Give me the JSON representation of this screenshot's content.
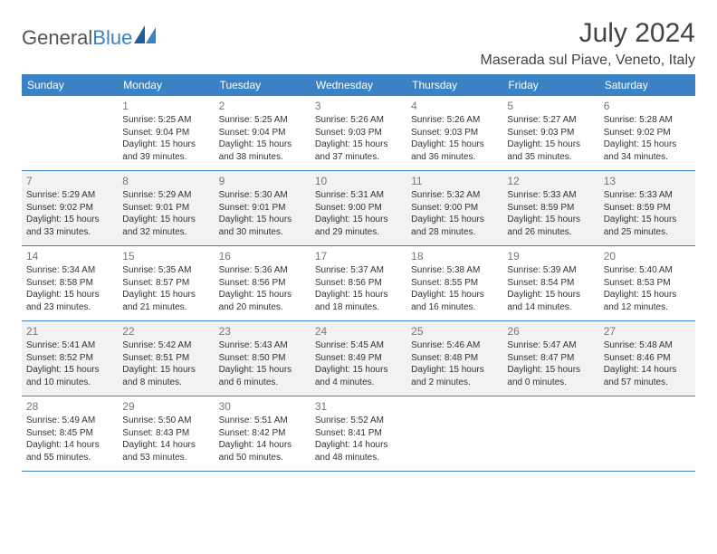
{
  "brand": {
    "name1": "General",
    "name2": "Blue"
  },
  "title": "July 2024",
  "location": "Maserada sul Piave, Veneto, Italy",
  "colors": {
    "header_bg": "#3b82c4",
    "header_text": "#ffffff",
    "day_num": "#777777",
    "body_text": "#333333",
    "shaded_bg": "#f2f2f2",
    "border": "#3b82c4",
    "title_color": "#444444"
  },
  "weekdays": [
    "Sunday",
    "Monday",
    "Tuesday",
    "Wednesday",
    "Thursday",
    "Friday",
    "Saturday"
  ],
  "weeks": [
    [
      null,
      {
        "n": "1",
        "sr": "5:25 AM",
        "ss": "9:04 PM",
        "dl": "15 hours and 39 minutes."
      },
      {
        "n": "2",
        "sr": "5:25 AM",
        "ss": "9:04 PM",
        "dl": "15 hours and 38 minutes."
      },
      {
        "n": "3",
        "sr": "5:26 AM",
        "ss": "9:03 PM",
        "dl": "15 hours and 37 minutes."
      },
      {
        "n": "4",
        "sr": "5:26 AM",
        "ss": "9:03 PM",
        "dl": "15 hours and 36 minutes."
      },
      {
        "n": "5",
        "sr": "5:27 AM",
        "ss": "9:03 PM",
        "dl": "15 hours and 35 minutes."
      },
      {
        "n": "6",
        "sr": "5:28 AM",
        "ss": "9:02 PM",
        "dl": "15 hours and 34 minutes."
      }
    ],
    [
      {
        "n": "7",
        "sr": "5:29 AM",
        "ss": "9:02 PM",
        "dl": "15 hours and 33 minutes."
      },
      {
        "n": "8",
        "sr": "5:29 AM",
        "ss": "9:01 PM",
        "dl": "15 hours and 32 minutes."
      },
      {
        "n": "9",
        "sr": "5:30 AM",
        "ss": "9:01 PM",
        "dl": "15 hours and 30 minutes."
      },
      {
        "n": "10",
        "sr": "5:31 AM",
        "ss": "9:00 PM",
        "dl": "15 hours and 29 minutes."
      },
      {
        "n": "11",
        "sr": "5:32 AM",
        "ss": "9:00 PM",
        "dl": "15 hours and 28 minutes."
      },
      {
        "n": "12",
        "sr": "5:33 AM",
        "ss": "8:59 PM",
        "dl": "15 hours and 26 minutes."
      },
      {
        "n": "13",
        "sr": "5:33 AM",
        "ss": "8:59 PM",
        "dl": "15 hours and 25 minutes."
      }
    ],
    [
      {
        "n": "14",
        "sr": "5:34 AM",
        "ss": "8:58 PM",
        "dl": "15 hours and 23 minutes."
      },
      {
        "n": "15",
        "sr": "5:35 AM",
        "ss": "8:57 PM",
        "dl": "15 hours and 21 minutes."
      },
      {
        "n": "16",
        "sr": "5:36 AM",
        "ss": "8:56 PM",
        "dl": "15 hours and 20 minutes."
      },
      {
        "n": "17",
        "sr": "5:37 AM",
        "ss": "8:56 PM",
        "dl": "15 hours and 18 minutes."
      },
      {
        "n": "18",
        "sr": "5:38 AM",
        "ss": "8:55 PM",
        "dl": "15 hours and 16 minutes."
      },
      {
        "n": "19",
        "sr": "5:39 AM",
        "ss": "8:54 PM",
        "dl": "15 hours and 14 minutes."
      },
      {
        "n": "20",
        "sr": "5:40 AM",
        "ss": "8:53 PM",
        "dl": "15 hours and 12 minutes."
      }
    ],
    [
      {
        "n": "21",
        "sr": "5:41 AM",
        "ss": "8:52 PM",
        "dl": "15 hours and 10 minutes."
      },
      {
        "n": "22",
        "sr": "5:42 AM",
        "ss": "8:51 PM",
        "dl": "15 hours and 8 minutes."
      },
      {
        "n": "23",
        "sr": "5:43 AM",
        "ss": "8:50 PM",
        "dl": "15 hours and 6 minutes."
      },
      {
        "n": "24",
        "sr": "5:45 AM",
        "ss": "8:49 PM",
        "dl": "15 hours and 4 minutes."
      },
      {
        "n": "25",
        "sr": "5:46 AM",
        "ss": "8:48 PM",
        "dl": "15 hours and 2 minutes."
      },
      {
        "n": "26",
        "sr": "5:47 AM",
        "ss": "8:47 PM",
        "dl": "15 hours and 0 minutes."
      },
      {
        "n": "27",
        "sr": "5:48 AM",
        "ss": "8:46 PM",
        "dl": "14 hours and 57 minutes."
      }
    ],
    [
      {
        "n": "28",
        "sr": "5:49 AM",
        "ss": "8:45 PM",
        "dl": "14 hours and 55 minutes."
      },
      {
        "n": "29",
        "sr": "5:50 AM",
        "ss": "8:43 PM",
        "dl": "14 hours and 53 minutes."
      },
      {
        "n": "30",
        "sr": "5:51 AM",
        "ss": "8:42 PM",
        "dl": "14 hours and 50 minutes."
      },
      {
        "n": "31",
        "sr": "5:52 AM",
        "ss": "8:41 PM",
        "dl": "14 hours and 48 minutes."
      },
      null,
      null,
      null
    ]
  ],
  "shaded_pattern": "even_weeks"
}
